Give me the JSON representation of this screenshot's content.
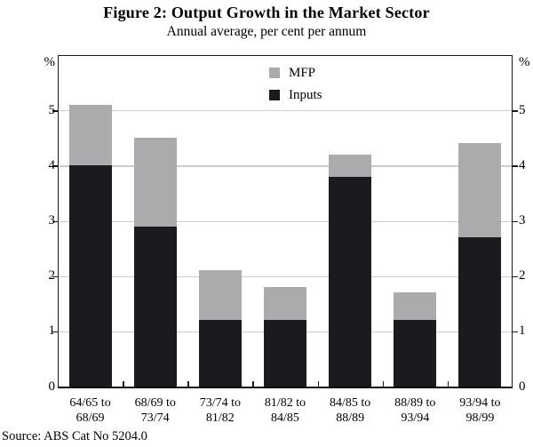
{
  "title": "Figure 2:  Output Growth in the Market Sector",
  "subtitle": "Annual average, per cent per annum",
  "source": "Source: ABS Cat No 5204.0",
  "axes": {
    "left_unit": "%",
    "right_unit": "%",
    "yticks": [
      0,
      1,
      2,
      3,
      4,
      5
    ],
    "ymax": 6
  },
  "legend": {
    "entries": [
      "MFP",
      "Inputs"
    ]
  },
  "colors": {
    "inputs_bar": "#1b1b1f",
    "mfp_bar": "#aaabad",
    "gridline": "#cccccc",
    "axis": "#1a1a1a",
    "text": "#000000"
  },
  "chart_data": {
    "type": "bar",
    "stacked": true,
    "title": "Figure 2: Output Growth in the Market Sector",
    "subtitle": "Annual average, per cent per annum",
    "categories": [
      "64/65 to 68/69",
      "68/69 to 73/74",
      "73/74 to 81/82",
      "81/82 to 84/85",
      "84/85 to 88/89",
      "88/89 to 93/94",
      "93/94 to 98/99"
    ],
    "series": [
      {
        "name": "Inputs",
        "color": "#1b1b1f",
        "values": [
          4.0,
          2.9,
          1.2,
          1.2,
          3.8,
          1.2,
          2.7
        ]
      },
      {
        "name": "MFP",
        "color": "#aaabad",
        "values": [
          1.1,
          1.6,
          0.9,
          0.6,
          0.4,
          0.5,
          1.7
        ]
      }
    ],
    "totals": [
      5.1,
      4.5,
      2.1,
      1.8,
      4.2,
      1.7,
      4.4
    ],
    "ylabel": "%",
    "ylim": [
      0,
      6
    ],
    "yticks": [
      0,
      1,
      2,
      3,
      4,
      5
    ],
    "grid": true,
    "legend_position": "top-center-inside"
  }
}
